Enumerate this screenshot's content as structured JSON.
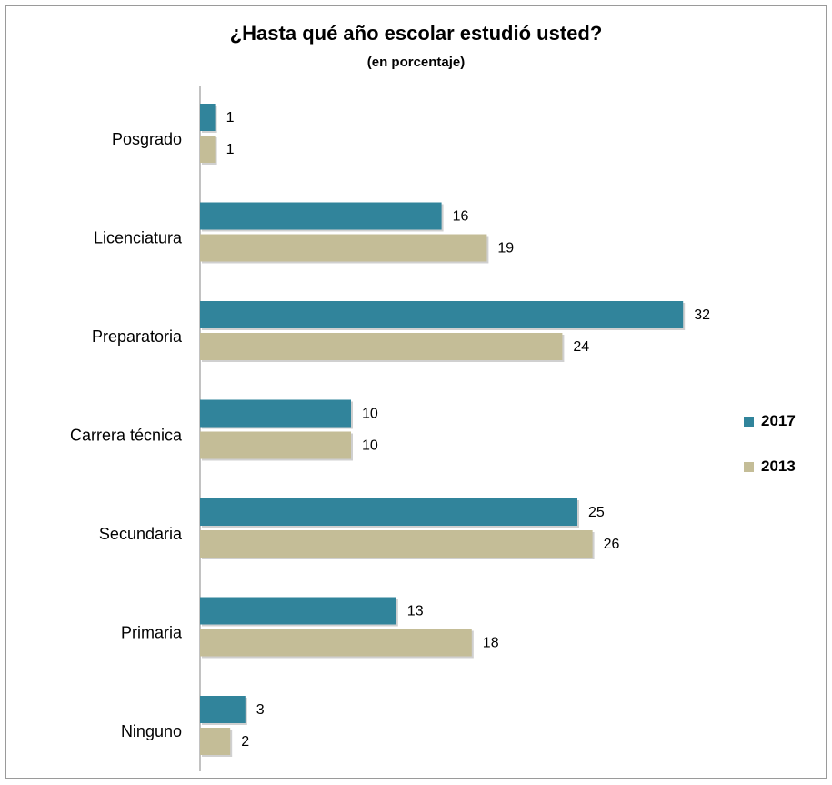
{
  "chart_data": {
    "type": "bar",
    "orientation": "horizontal",
    "title": "¿Hasta qué año escolar estudió usted?",
    "subtitle": "(en porcentaje)",
    "categories": [
      "Posgrado",
      "Licenciatura",
      "Preparatoria",
      "Carrera técnica",
      "Secundaria",
      "Primaria",
      "Ninguno"
    ],
    "series": [
      {
        "name": "2017",
        "color": "#31849b",
        "values": [
          1,
          16,
          32,
          10,
          25,
          13,
          3
        ]
      },
      {
        "name": "2013",
        "color": "#c4bd97",
        "values": [
          1,
          19,
          24,
          10,
          26,
          18,
          2
        ]
      }
    ],
    "xlim": [
      0,
      40
    ],
    "grid": false,
    "data_labels": true,
    "legend_position": "right"
  }
}
